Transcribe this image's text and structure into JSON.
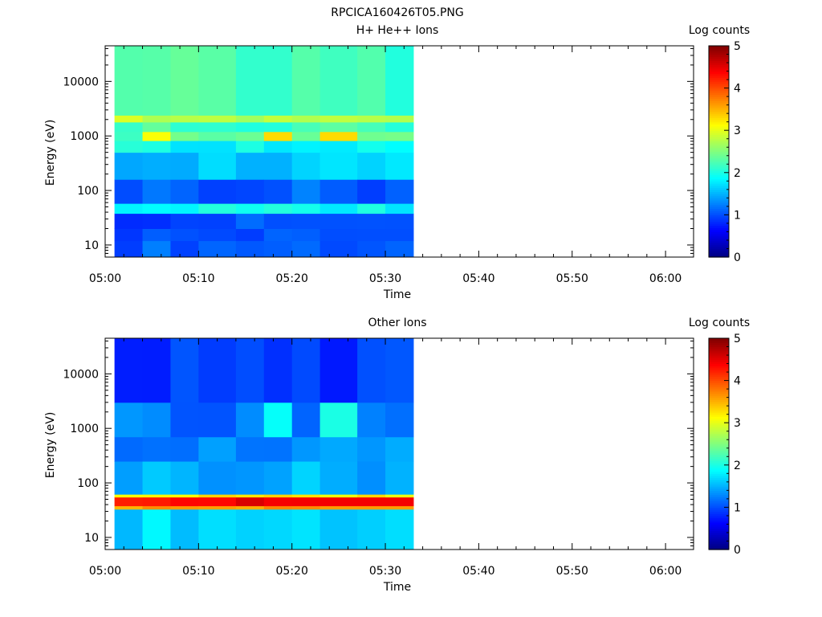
{
  "figure_title": "RPCICA160426T05.PNG",
  "chart_data": [
    {
      "type": "heatmap",
      "title": "H+ He++ Ions",
      "xlabel": "Time",
      "ylabel": "Energy (eV)",
      "y_scale": "log",
      "ylim": [
        6,
        45000
      ],
      "xlim": [
        "05:00",
        "06:03"
      ],
      "x_tick_labels": [
        "05:00",
        "05:10",
        "05:20",
        "05:30",
        "05:40",
        "05:50",
        "06:00"
      ],
      "y_tick_labels": [
        "10",
        "100",
        "1000",
        "10000"
      ],
      "colorbar": {
        "label": "Log counts",
        "range": [
          0,
          5
        ],
        "ticks": [
          "0",
          "1",
          "2",
          "3",
          "4",
          "5"
        ],
        "colormap": "jet"
      },
      "data_time_range": [
        "05:01",
        "05:33"
      ],
      "time_columns": [
        "05:01",
        "05:04",
        "05:07",
        "05:10",
        "05:14",
        "05:17",
        "05:20",
        "05:23",
        "05:27",
        "05:30"
      ],
      "energy_bands": [
        {
          "range_eV": [
            6,
            12
          ],
          "log_counts": 1.1
        },
        {
          "range_eV": [
            12,
            20
          ],
          "log_counts": 1.0
        },
        {
          "range_eV": [
            20,
            38
          ],
          "log_counts": 1.0
        },
        {
          "range_eV": [
            38,
            58
          ],
          "log_counts": 1.9
        },
        {
          "range_eV": [
            58,
            160
          ],
          "log_counts": 1.1
        },
        {
          "range_eV": [
            160,
            500
          ],
          "log_counts": 1.6
        },
        {
          "range_eV": [
            500,
            820
          ],
          "log_counts": 1.9
        },
        {
          "range_eV": [
            820,
            1200
          ],
          "log_counts": 2.3
        },
        {
          "range_eV": [
            1200,
            1800
          ],
          "log_counts": 2.2
        },
        {
          "range_eV": [
            1800,
            2400
          ],
          "log_counts": 2.8
        },
        {
          "range_eV": [
            2400,
            45000
          ],
          "log_counts": 2.2
        }
      ],
      "hotspots": [
        {
          "time": "05:05",
          "range_eV": [
            820,
            1200
          ],
          "log_counts": 3.1
        },
        {
          "time": "05:18",
          "range_eV": [
            820,
            1200
          ],
          "log_counts": 3.3
        },
        {
          "time": "05:25",
          "range_eV": [
            820,
            1200
          ],
          "log_counts": 3.3
        }
      ]
    },
    {
      "type": "heatmap",
      "title": "Other Ions",
      "xlabel": "Time",
      "ylabel": "Energy (eV)",
      "y_scale": "log",
      "ylim": [
        6,
        45000
      ],
      "xlim": [
        "05:00",
        "06:03"
      ],
      "x_tick_labels": [
        "05:00",
        "05:10",
        "05:20",
        "05:30",
        "05:40",
        "05:50",
        "06:00"
      ],
      "y_tick_labels": [
        "10",
        "100",
        "1000",
        "10000"
      ],
      "colorbar": {
        "label": "Log counts",
        "range": [
          0,
          5
        ],
        "ticks": [
          "0",
          "1",
          "2",
          "3",
          "4",
          "5"
        ],
        "colormap": "jet"
      },
      "data_time_range": [
        "05:01",
        "05:33"
      ],
      "time_columns": [
        "05:01",
        "05:04",
        "05:07",
        "05:10",
        "05:14",
        "05:17",
        "05:20",
        "05:23",
        "05:27",
        "05:30"
      ],
      "energy_bands": [
        {
          "range_eV": [
            6,
            33
          ],
          "log_counts": 1.7
        },
        {
          "range_eV": [
            33,
            38
          ],
          "log_counts": 3.6
        },
        {
          "range_eV": [
            38,
            55
          ],
          "log_counts": 4.4
        },
        {
          "range_eV": [
            55,
            62
          ],
          "log_counts": 3.2
        },
        {
          "range_eV": [
            62,
            250
          ],
          "log_counts": 1.5
        },
        {
          "range_eV": [
            250,
            700
          ],
          "log_counts": 1.3
        },
        {
          "range_eV": [
            700,
            3000
          ],
          "log_counts": 1.2
        },
        {
          "range_eV": [
            3000,
            45000
          ],
          "log_counts": 0.9
        }
      ],
      "hotspots": [
        {
          "time": "05:18",
          "range_eV": [
            850,
            1150
          ],
          "log_counts": 1.9
        },
        {
          "time": "05:25",
          "range_eV": [
            850,
            1150
          ],
          "log_counts": 2.0
        }
      ]
    }
  ]
}
